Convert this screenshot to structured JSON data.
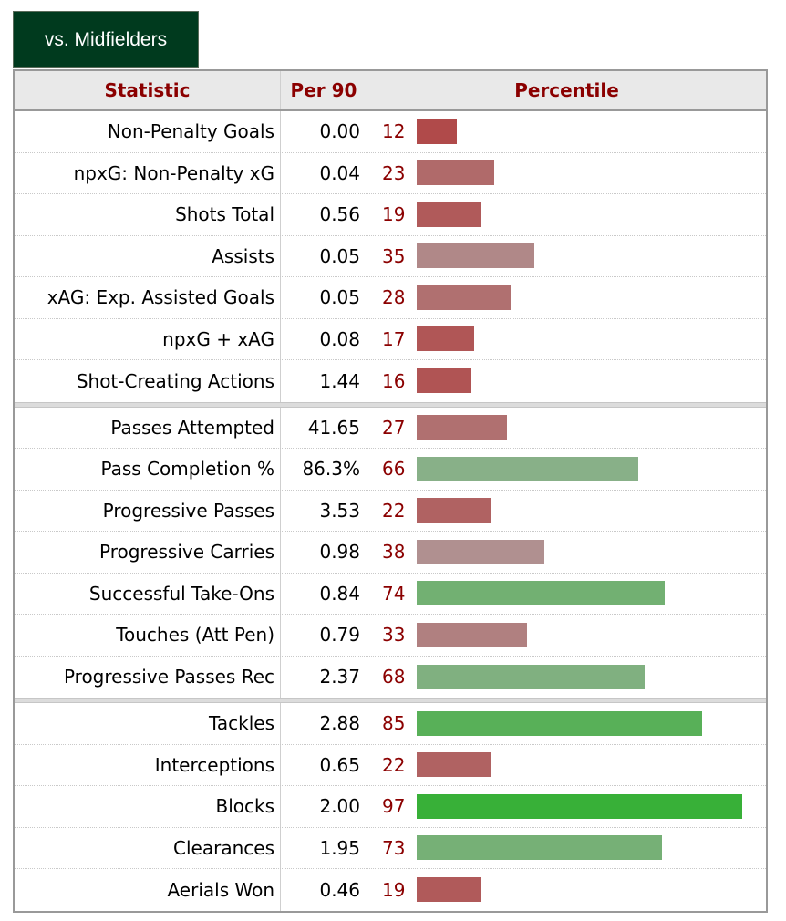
{
  "tab": {
    "label": "vs. Midfielders"
  },
  "headers": {
    "statistic": "Statistic",
    "per90": "Per 90",
    "percentile": "Percentile"
  },
  "groups": [
    [
      {
        "stat": "Non-Penalty Goals",
        "per90": "0.00",
        "percentile": 12,
        "color": "#b04a4a"
      },
      {
        "stat": "npxG: Non-Penalty xG",
        "per90": "0.04",
        "percentile": 23,
        "color": "#b06a6a"
      },
      {
        "stat": "Shots Total",
        "per90": "0.56",
        "percentile": 19,
        "color": "#b05a5a"
      },
      {
        "stat": "Assists",
        "per90": "0.05",
        "percentile": 35,
        "color": "#b08888"
      },
      {
        "stat": "xAG: Exp. Assisted Goals",
        "per90": "0.05",
        "percentile": 28,
        "color": "#b07070"
      },
      {
        "stat": "npxG + xAG",
        "per90": "0.08",
        "percentile": 17,
        "color": "#b05656"
      },
      {
        "stat": "Shot-Creating Actions",
        "per90": "1.44",
        "percentile": 16,
        "color": "#b05454"
      }
    ],
    [
      {
        "stat": "Passes Attempted",
        "per90": "41.65",
        "percentile": 27,
        "color": "#b07070"
      },
      {
        "stat": "Pass Completion %",
        "per90": "86.3%",
        "percentile": 66,
        "color": "#88b088"
      },
      {
        "stat": "Progressive Passes",
        "per90": "3.53",
        "percentile": 22,
        "color": "#b06262"
      },
      {
        "stat": "Progressive Carries",
        "per90": "0.98",
        "percentile": 38,
        "color": "#b09090"
      },
      {
        "stat": "Successful Take-Ons",
        "per90": "0.84",
        "percentile": 74,
        "color": "#72b072"
      },
      {
        "stat": "Touches (Att Pen)",
        "per90": "0.79",
        "percentile": 33,
        "color": "#b08080"
      },
      {
        "stat": "Progressive Passes Rec",
        "per90": "2.37",
        "percentile": 68,
        "color": "#80b080"
      }
    ],
    [
      {
        "stat": "Tackles",
        "per90": "2.88",
        "percentile": 85,
        "color": "#58b058"
      },
      {
        "stat": "Interceptions",
        "per90": "0.65",
        "percentile": 22,
        "color": "#b06262"
      },
      {
        "stat": "Blocks",
        "per90": "2.00",
        "percentile": 97,
        "color": "#38b038"
      },
      {
        "stat": "Clearances",
        "per90": "1.95",
        "percentile": 73,
        "color": "#76b076"
      },
      {
        "stat": "Aerials Won",
        "per90": "0.46",
        "percentile": 19,
        "color": "#b05a5a"
      }
    ]
  ]
}
